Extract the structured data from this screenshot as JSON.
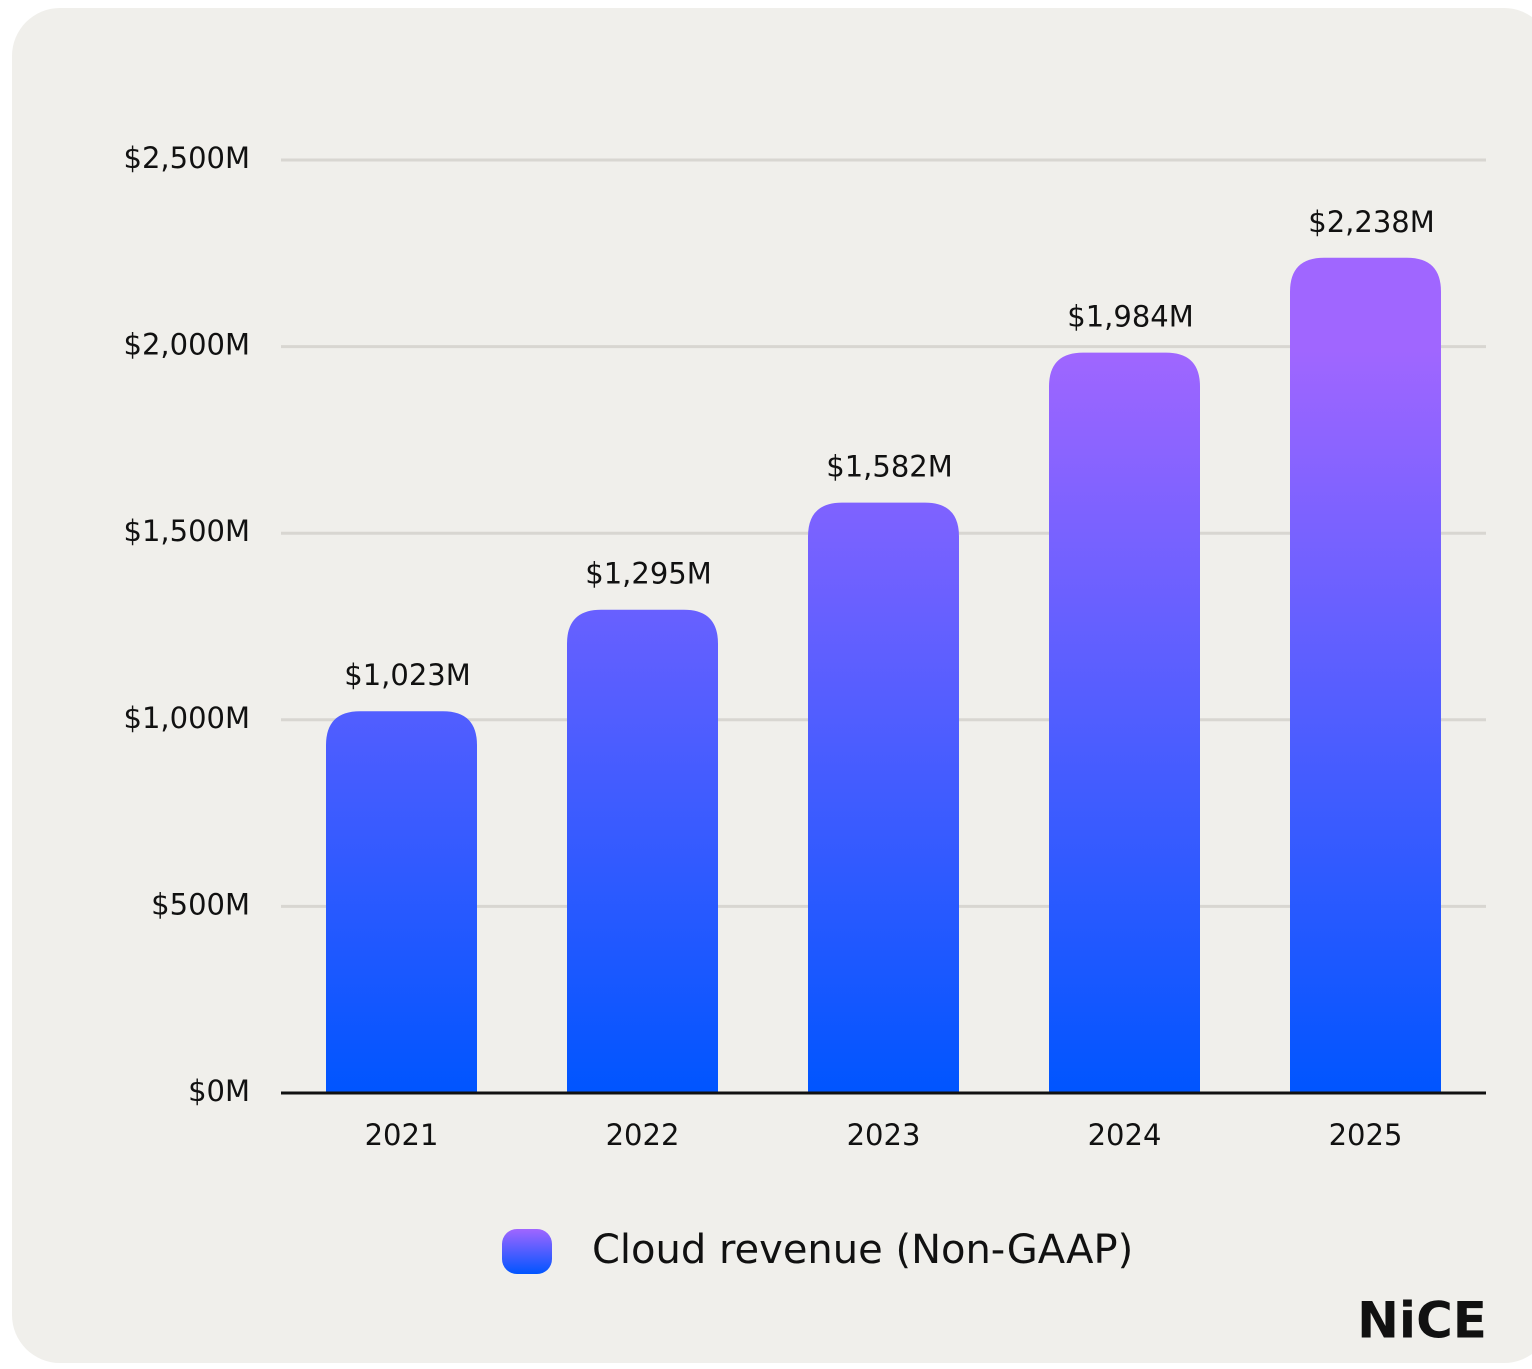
{
  "chart_data": {
    "type": "bar",
    "categories": [
      "2021",
      "2022",
      "2023",
      "2024",
      "2025"
    ],
    "series": [
      {
        "name": "Cloud revenue (Non-GAAP)",
        "color": [
          "#0055ff",
          "#a066ff"
        ],
        "values": [
          1023,
          1295,
          1582,
          1984,
          2238
        ],
        "value_labels": [
          "$1,023M",
          "$1,295M",
          "$1,582M",
          "$1,984M",
          "$2,238M"
        ]
      }
    ],
    "ylim": [
      0,
      2500
    ],
    "yticks": [
      {
        "value": 0,
        "label": "$0M"
      },
      {
        "value": 500,
        "label": "$500M"
      },
      {
        "value": 1000,
        "label": "$1,000M"
      },
      {
        "value": 1500,
        "label": "$1,500M"
      },
      {
        "value": 2000,
        "label": "$2,000M"
      },
      {
        "value": 2500,
        "label": "$2,500M"
      }
    ],
    "grid": true,
    "legend": "bottom",
    "logo": "NiCE"
  }
}
